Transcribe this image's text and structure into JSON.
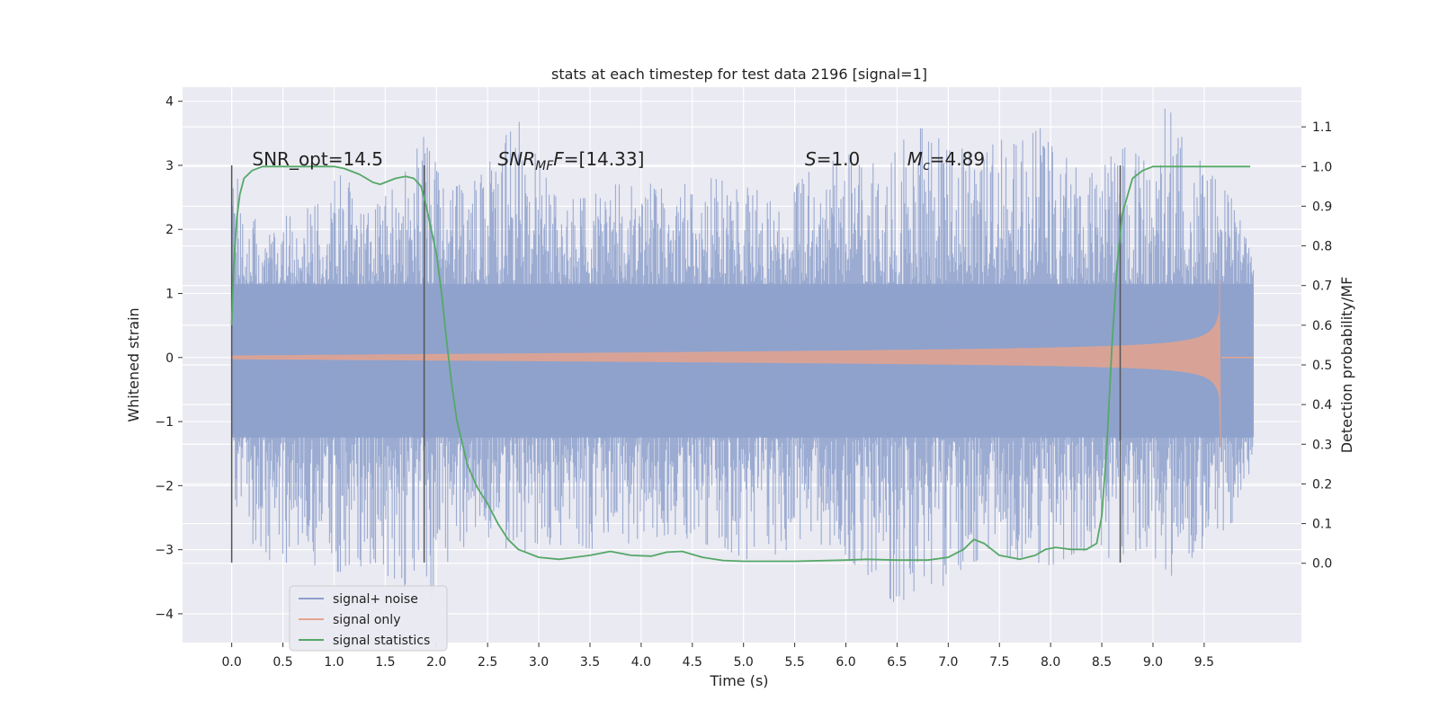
{
  "chart_data": {
    "type": "line",
    "title": "stats at each timestep for test data 2196 [signal=1]",
    "xlabel": "Time (s)",
    "ylabel": "Whitened strain",
    "ylabel_right": "Detection probability/MF",
    "xlim": [
      -0.48,
      10.45
    ],
    "ylim": [
      -4.45,
      4.22
    ],
    "ylim_right": [
      -0.2,
      1.2
    ],
    "xticks": [
      0.0,
      0.5,
      1.0,
      1.5,
      2.0,
      2.5,
      3.0,
      3.5,
      4.0,
      4.5,
      5.0,
      5.5,
      6.0,
      6.5,
      7.0,
      7.5,
      8.0,
      8.5,
      9.0,
      9.5
    ],
    "xtick_labels": [
      "0.0",
      "0.5",
      "1.0",
      "1.5",
      "2.0",
      "2.5",
      "3.0",
      "3.5",
      "4.0",
      "4.5",
      "5.0",
      "5.5",
      "6.0",
      "6.5",
      "7.0",
      "7.5",
      "8.0",
      "8.5",
      "9.0",
      "9.5"
    ],
    "yticks": [
      -4,
      -3,
      -2,
      -1,
      0,
      1,
      2,
      3,
      4
    ],
    "ytick_labels": [
      "−4",
      "−3",
      "−2",
      "−1",
      "0",
      "1",
      "2",
      "3",
      "4"
    ],
    "yticks_right": [
      0.0,
      0.1,
      0.2,
      0.3,
      0.4,
      0.5,
      0.6,
      0.7,
      0.8,
      0.9,
      1.0,
      1.1
    ],
    "ytick_labels_right": [
      "0.0",
      "0.1",
      "0.2",
      "0.3",
      "0.4",
      "0.5",
      "0.6",
      "0.7",
      "0.8",
      "0.9",
      "1.0",
      "1.1"
    ],
    "grid": true,
    "legend_position": "bottom-left",
    "annotations": [
      {
        "text": "SNR_opt=14.5",
        "x": 0.2,
        "y": 3.1
      },
      {
        "text": "SNR",
        "sub": "MF",
        "suffix": "=[14.33]",
        "italic": true,
        "x": 2.6,
        "y": 3.1
      },
      {
        "text": "S",
        "sub": "",
        "suffix": "=1.0",
        "italic": true,
        "x": 5.6,
        "y": 3.1
      },
      {
        "text": "M",
        "sub": "c",
        "suffix": "=4.89",
        "italic": true,
        "x": 6.6,
        "y": 3.1
      }
    ],
    "vlines": [
      0.0,
      1.88,
      8.68
    ],
    "vline_range": [
      -3.2,
      3.0
    ],
    "series": [
      {
        "name": "signal+ noise",
        "color": "#8da0cb",
        "x_range": [
          0.0,
          9.98
        ],
        "envelope_peaks": [
          [
            0.0,
            3.0
          ],
          [
            0.3,
            1.9
          ],
          [
            0.6,
            2.3
          ],
          [
            0.7,
            2.4
          ],
          [
            0.9,
            2.6
          ],
          [
            1.1,
            2.9
          ],
          [
            1.3,
            2.2
          ],
          [
            1.65,
            2.75
          ],
          [
            1.88,
            3.5
          ],
          [
            2.1,
            2.6
          ],
          [
            2.5,
            2.9
          ],
          [
            2.52,
            3.05
          ],
          [
            2.77,
            3.8
          ],
          [
            3.2,
            2.45
          ],
          [
            3.5,
            2.5
          ],
          [
            3.7,
            2.7
          ],
          [
            4.0,
            2.7
          ],
          [
            4.7,
            2.8
          ],
          [
            5.4,
            2.5
          ],
          [
            5.7,
            3.0
          ],
          [
            5.95,
            3.1
          ],
          [
            6.13,
            3.25
          ],
          [
            6.35,
            2.9
          ],
          [
            6.65,
            3.6
          ],
          [
            7.0,
            3.5
          ],
          [
            7.33,
            3.05
          ],
          [
            7.55,
            3.75
          ],
          [
            7.65,
            3.3
          ],
          [
            8.0,
            3.7
          ],
          [
            8.2,
            2.95
          ],
          [
            8.5,
            3.05
          ],
          [
            8.75,
            3.3
          ],
          [
            9.0,
            2.95
          ],
          [
            9.1,
            3.95
          ],
          [
            9.22,
            3.75
          ],
          [
            9.45,
            3.1
          ],
          [
            9.6,
            2.8
          ],
          [
            9.78,
            2.5
          ],
          [
            9.98,
            1.5
          ]
        ],
        "envelope_troughs": [
          [
            0.0,
            -2.6
          ],
          [
            0.33,
            -3.1
          ],
          [
            0.45,
            -3.3
          ],
          [
            1.05,
            -3.35
          ],
          [
            1.4,
            -3.2
          ],
          [
            1.88,
            -4.0
          ],
          [
            2.15,
            -3.05
          ],
          [
            2.5,
            -2.8
          ],
          [
            2.8,
            -3.1
          ],
          [
            3.0,
            -2.9
          ],
          [
            3.6,
            -3.0
          ],
          [
            4.3,
            -2.75
          ],
          [
            4.9,
            -3.05
          ],
          [
            5.1,
            -3.2
          ],
          [
            5.6,
            -2.9
          ],
          [
            6.0,
            -3.1
          ],
          [
            6.62,
            -4.05
          ],
          [
            7.2,
            -3.2
          ],
          [
            7.55,
            -3.1
          ],
          [
            7.95,
            -3.3
          ],
          [
            8.3,
            -3.0
          ],
          [
            8.55,
            -3.2
          ],
          [
            8.95,
            -2.95
          ],
          [
            9.15,
            -3.45
          ],
          [
            9.9,
            -2.4
          ],
          [
            9.98,
            -1.5
          ]
        ]
      },
      {
        "name": "signal only",
        "color": "#e5a48d",
        "description_points": [
          [
            0.0,
            0.01
          ],
          [
            2.0,
            0.02
          ],
          [
            4.0,
            0.05
          ],
          [
            6.0,
            0.1
          ],
          [
            8.0,
            0.2
          ],
          [
            9.0,
            0.35
          ],
          [
            9.5,
            0.6
          ],
          [
            9.65,
            1.2
          ],
          [
            9.66,
            -1.4
          ],
          [
            9.68,
            0.0
          ],
          [
            9.98,
            0.0
          ]
        ]
      },
      {
        "name": "signal statistics",
        "color": "#55a868",
        "axis": "right",
        "x": [
          0.0,
          0.02,
          0.05,
          0.08,
          0.12,
          0.2,
          0.3,
          0.5,
          0.8,
          1.0,
          1.1,
          1.25,
          1.38,
          1.45,
          1.5,
          1.6,
          1.7,
          1.78,
          1.85,
          1.9,
          2.0,
          2.05,
          2.1,
          2.15,
          2.2,
          2.3,
          2.4,
          2.5,
          2.6,
          2.7,
          2.8,
          3.0,
          3.2,
          3.5,
          3.7,
          3.9,
          4.1,
          4.25,
          4.4,
          4.6,
          4.8,
          5.0,
          5.5,
          6.0,
          6.2,
          6.5,
          6.8,
          7.0,
          7.15,
          7.25,
          7.35,
          7.5,
          7.7,
          7.85,
          7.95,
          8.05,
          8.2,
          8.35,
          8.45,
          8.5,
          8.55,
          8.6,
          8.65,
          8.7,
          8.8,
          8.9,
          9.0,
          9.2,
          9.5,
          9.95
        ],
        "values": [
          0.6,
          0.75,
          0.87,
          0.93,
          0.97,
          0.99,
          1.0,
          1.0,
          1.0,
          1.0,
          0.995,
          0.98,
          0.96,
          0.955,
          0.96,
          0.97,
          0.975,
          0.97,
          0.95,
          0.9,
          0.78,
          0.68,
          0.56,
          0.45,
          0.36,
          0.25,
          0.19,
          0.15,
          0.1,
          0.06,
          0.035,
          0.015,
          0.01,
          0.02,
          0.03,
          0.02,
          0.018,
          0.028,
          0.03,
          0.015,
          0.007,
          0.005,
          0.005,
          0.008,
          0.01,
          0.008,
          0.008,
          0.015,
          0.035,
          0.06,
          0.05,
          0.02,
          0.01,
          0.02,
          0.035,
          0.04,
          0.035,
          0.035,
          0.05,
          0.12,
          0.3,
          0.55,
          0.75,
          0.88,
          0.97,
          0.99,
          1.0,
          1.0,
          1.0,
          1.0
        ]
      }
    ]
  }
}
